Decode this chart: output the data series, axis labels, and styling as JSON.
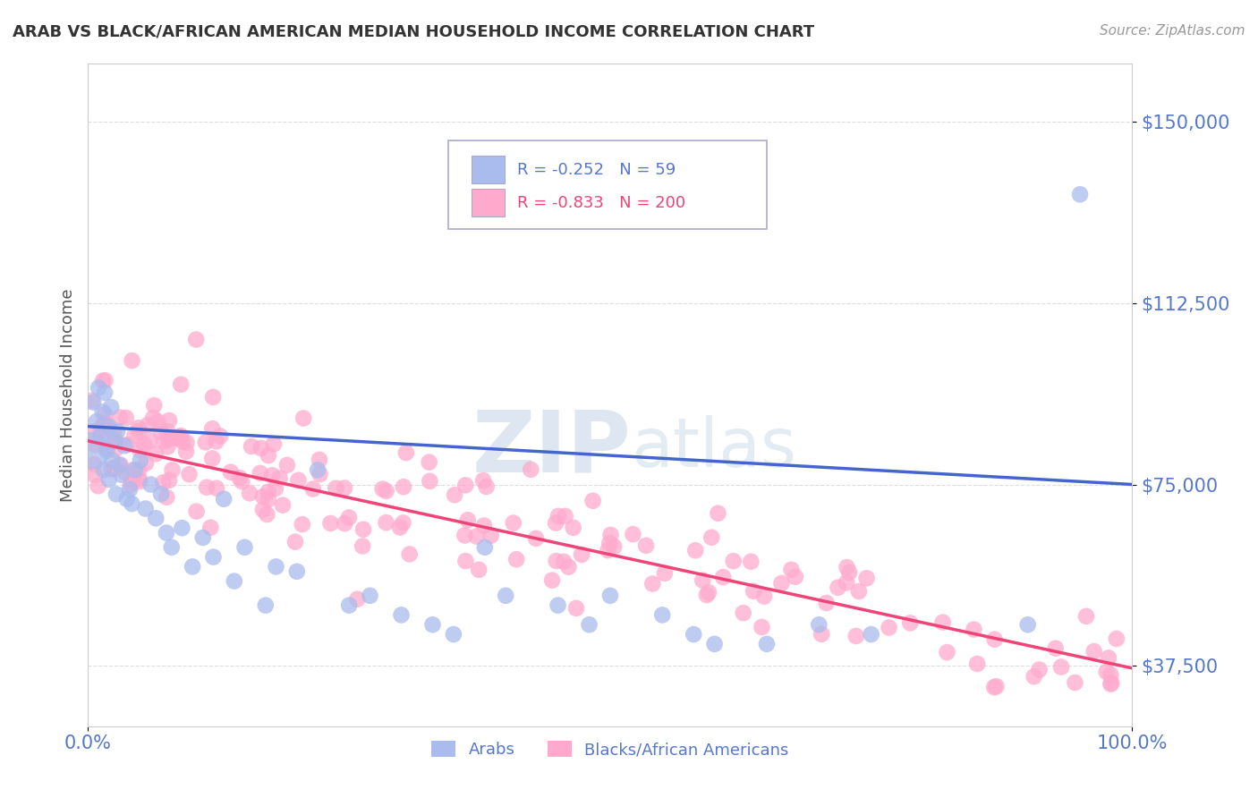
{
  "title": "ARAB VS BLACK/AFRICAN AMERICAN MEDIAN HOUSEHOLD INCOME CORRELATION CHART",
  "source": "Source: ZipAtlas.com",
  "ylabel": "Median Household Income",
  "xlim": [
    0.0,
    100.0
  ],
  "ylim": [
    25000,
    162000
  ],
  "yticks": [
    37500,
    75000,
    112500,
    150000
  ],
  "ytick_labels": [
    "$37,500",
    "$75,000",
    "$112,500",
    "$150,000"
  ],
  "xtick_labels": [
    "0.0%",
    "100.0%"
  ],
  "arab_R": -0.252,
  "arab_N": 59,
  "black_R": -0.833,
  "black_N": 200,
  "arab_fill_color": "#AABBEE",
  "arab_edge_color": "#6688CC",
  "arab_line_color": "#4466CC",
  "black_fill_color": "#FFAACC",
  "black_edge_color": "#EE6688",
  "black_line_color": "#EE4477",
  "watermark_zip_color": "#CCDDEE",
  "watermark_atlas_color": "#BBCCDD",
  "background_color": "#FFFFFF",
  "grid_color": "#DDDDDD",
  "tick_label_color": "#5577CC",
  "legend_box_color": "#EEEEFF",
  "legend_border_color": "#AAAACC",
  "title_color": "#333333",
  "source_color": "#999999",
  "ylabel_color": "#555555"
}
